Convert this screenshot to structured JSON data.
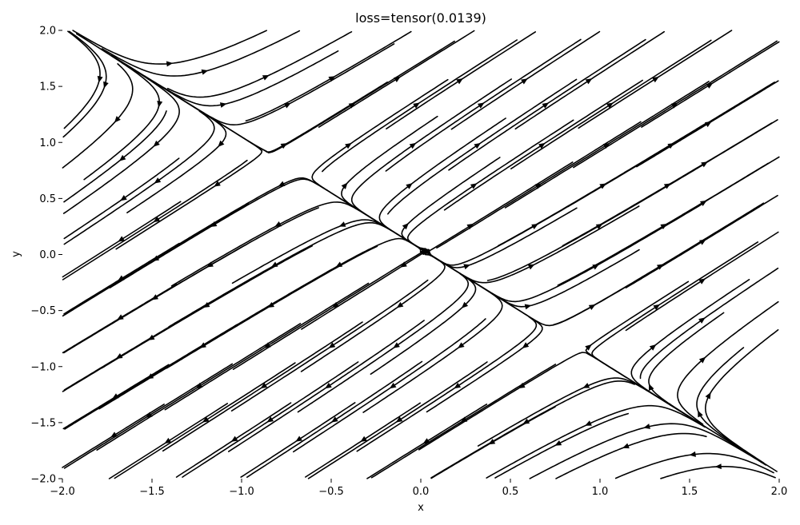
{
  "chart_data": {
    "type": "streamplot",
    "title": "loss=tensor(0.0139)",
    "xlabel": "x",
    "ylabel": "y",
    "xlim": [
      -2.0,
      2.0
    ],
    "ylim": [
      -2.0,
      2.0
    ],
    "xticks": [
      "−2.0",
      "−1.5",
      "−1.0",
      "−0.5",
      "0.0",
      "0.5",
      "1.0",
      "1.5",
      "2.0"
    ],
    "yticks": [
      "−2.0",
      "−1.5",
      "−1.0",
      "−0.5",
      "0.0",
      "0.5",
      "1.0",
      "1.5",
      "2.0"
    ],
    "grid": false,
    "stream_color": "#000000",
    "field": {
      "description_values": "vector field sampled on [-2,2]x[-2,2]",
      "direction_bottom_left_region": "toward (-2,-2)",
      "direction_top_right_region": "toward (2,2)",
      "separatrix_through_origin_slope": 1
    }
  }
}
